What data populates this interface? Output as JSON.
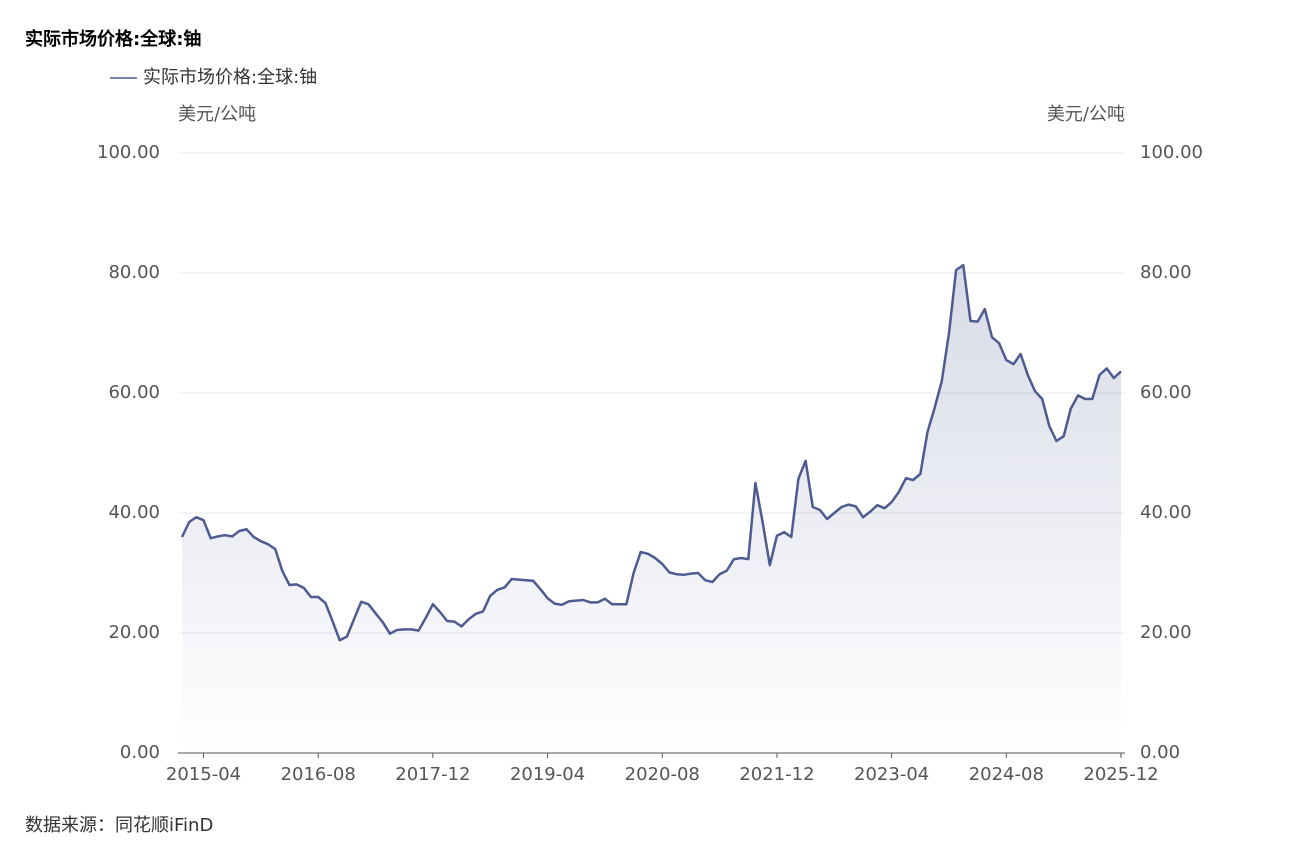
{
  "chart_data": {
    "type": "line",
    "title": "实际市场价格:全球:铀",
    "y_label": "美元/公吨",
    "y2_label": "美元/公吨",
    "source": "数据来源：同花顺iFinD",
    "categories": [
      null,
      null,
      null,
      "2015-04",
      null,
      null,
      null,
      null,
      null,
      null,
      null,
      null,
      null,
      null,
      null,
      null,
      null,
      null,
      null,
      "2016-08",
      null,
      null,
      null,
      null,
      null,
      null,
      null,
      null,
      null,
      null,
      null,
      null,
      null,
      null,
      null,
      "2017-12",
      null,
      null,
      null,
      null,
      null,
      null,
      null,
      null,
      null,
      null,
      null,
      null,
      null,
      null,
      null,
      "2019-04",
      null,
      null,
      null,
      null,
      null,
      null,
      null,
      null,
      null,
      null,
      null,
      null,
      null,
      null,
      null,
      "2020-08",
      null,
      null,
      null,
      null,
      null,
      null,
      null,
      null,
      null,
      null,
      null,
      null,
      null,
      null,
      null,
      "2021-12",
      null,
      null,
      null,
      null,
      null,
      null,
      null,
      null,
      null,
      null,
      null,
      null,
      null,
      null,
      null,
      "2023-04",
      null,
      null,
      null,
      null,
      null,
      null,
      null,
      null,
      null,
      null,
      null,
      null,
      null,
      null,
      null,
      "2024-08",
      null,
      null,
      null,
      null,
      null,
      null,
      null,
      null,
      null,
      null,
      null,
      null,
      null,
      null,
      null,
      "2025-12"
    ],
    "series": [
      {
        "name": "实际市场价格:全球:铀",
        "color": "#4e5b91",
        "values": [
          36.0,
          38.5,
          39.3,
          38.8,
          35.8,
          36.1,
          36.3,
          36.1,
          37.0,
          37.3,
          36.0,
          35.3,
          34.8,
          34.0,
          30.3,
          28.0,
          28.1,
          27.5,
          26.0,
          26.0,
          25.0,
          22.0,
          18.8,
          19.4,
          22.3,
          25.2,
          24.8,
          23.3,
          21.8,
          19.9,
          20.5,
          20.6,
          20.6,
          20.4,
          22.5,
          24.8,
          23.5,
          22.0,
          21.9,
          21.1,
          22.3,
          23.2,
          23.6,
          26.2,
          27.2,
          27.6,
          29.0,
          28.9,
          28.8,
          28.7,
          27.3,
          25.8,
          24.9,
          24.7,
          25.3,
          25.4,
          25.5,
          25.1,
          25.1,
          25.7,
          24.8,
          24.8,
          24.8,
          30.0,
          33.5,
          33.2,
          32.5,
          31.5,
          30.1,
          29.8,
          29.7,
          29.9,
          30.0,
          28.8,
          28.5,
          29.8,
          30.4,
          32.3,
          32.5,
          32.3,
          45.0,
          38.5,
          31.3,
          36.2,
          36.8,
          36.0,
          45.7,
          48.7,
          41.0,
          40.5,
          39.0,
          40.0,
          41.0,
          41.4,
          41.1,
          39.3,
          40.2,
          41.3,
          40.8,
          41.8,
          43.5,
          45.8,
          45.5,
          46.5,
          53.5,
          57.5,
          62.0,
          70.0,
          80.5,
          81.3,
          72.0,
          71.9,
          74.0,
          69.3,
          68.3,
          65.5,
          64.8,
          66.5,
          63.0,
          60.3,
          59.0,
          54.5,
          52.0,
          52.8,
          57.4,
          59.6,
          59.0,
          59.0,
          63.0,
          64.1,
          62.5,
          63.6
        ]
      }
    ],
    "ylim": [
      0,
      100
    ],
    "yticks": [
      {
        "value": 0,
        "label": "0.00"
      },
      {
        "value": 20,
        "label": "20.00"
      },
      {
        "value": 40,
        "label": "40.00"
      },
      {
        "value": 60,
        "label": "60.00"
      },
      {
        "value": 80,
        "label": "80.00"
      },
      {
        "value": 100,
        "label": "100.00"
      }
    ],
    "y2lim": [
      0,
      100
    ],
    "y2ticks": [
      {
        "value": 0,
        "label": "0.00"
      },
      {
        "value": 20,
        "label": "20.00"
      },
      {
        "value": 40,
        "label": "40.00"
      },
      {
        "value": 60,
        "label": "60.00"
      },
      {
        "value": 80,
        "label": "80.00"
      },
      {
        "value": 100,
        "label": "100.00"
      }
    ],
    "grid": true,
    "area": true
  }
}
